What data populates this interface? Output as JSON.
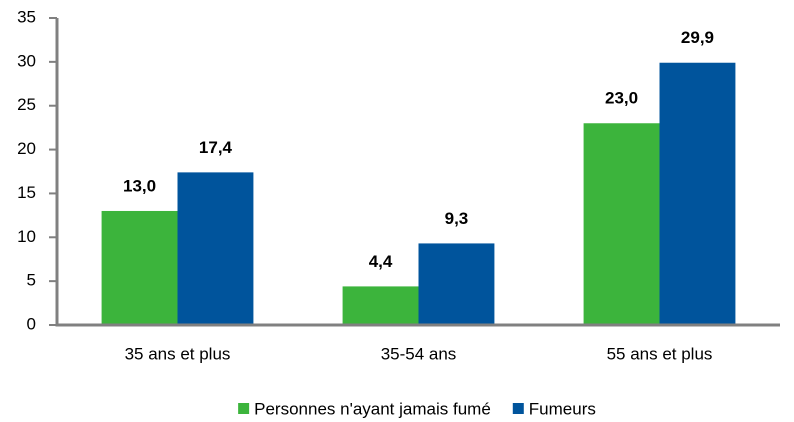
{
  "chart_data": {
    "type": "bar",
    "categories": [
      "35 ans et plus",
      "35-54 ans",
      "55 ans et plus"
    ],
    "series": [
      {
        "name": "Personnes n'ayant jamais fumé",
        "color": "#3cb43c",
        "values": [
          13.0,
          4.4,
          23.0
        ],
        "value_labels": [
          "13,0",
          "4,4",
          "23,0"
        ]
      },
      {
        "name": "Fumeurs",
        "color": "#00549c",
        "values": [
          17.4,
          9.3,
          29.9
        ],
        "value_labels": [
          "17,4",
          "9,3",
          "29,9"
        ]
      }
    ],
    "ylim": [
      0,
      35
    ],
    "yticks": [
      0,
      5,
      10,
      15,
      20,
      25,
      30,
      35
    ],
    "grid": false,
    "legend": "bottom"
  }
}
